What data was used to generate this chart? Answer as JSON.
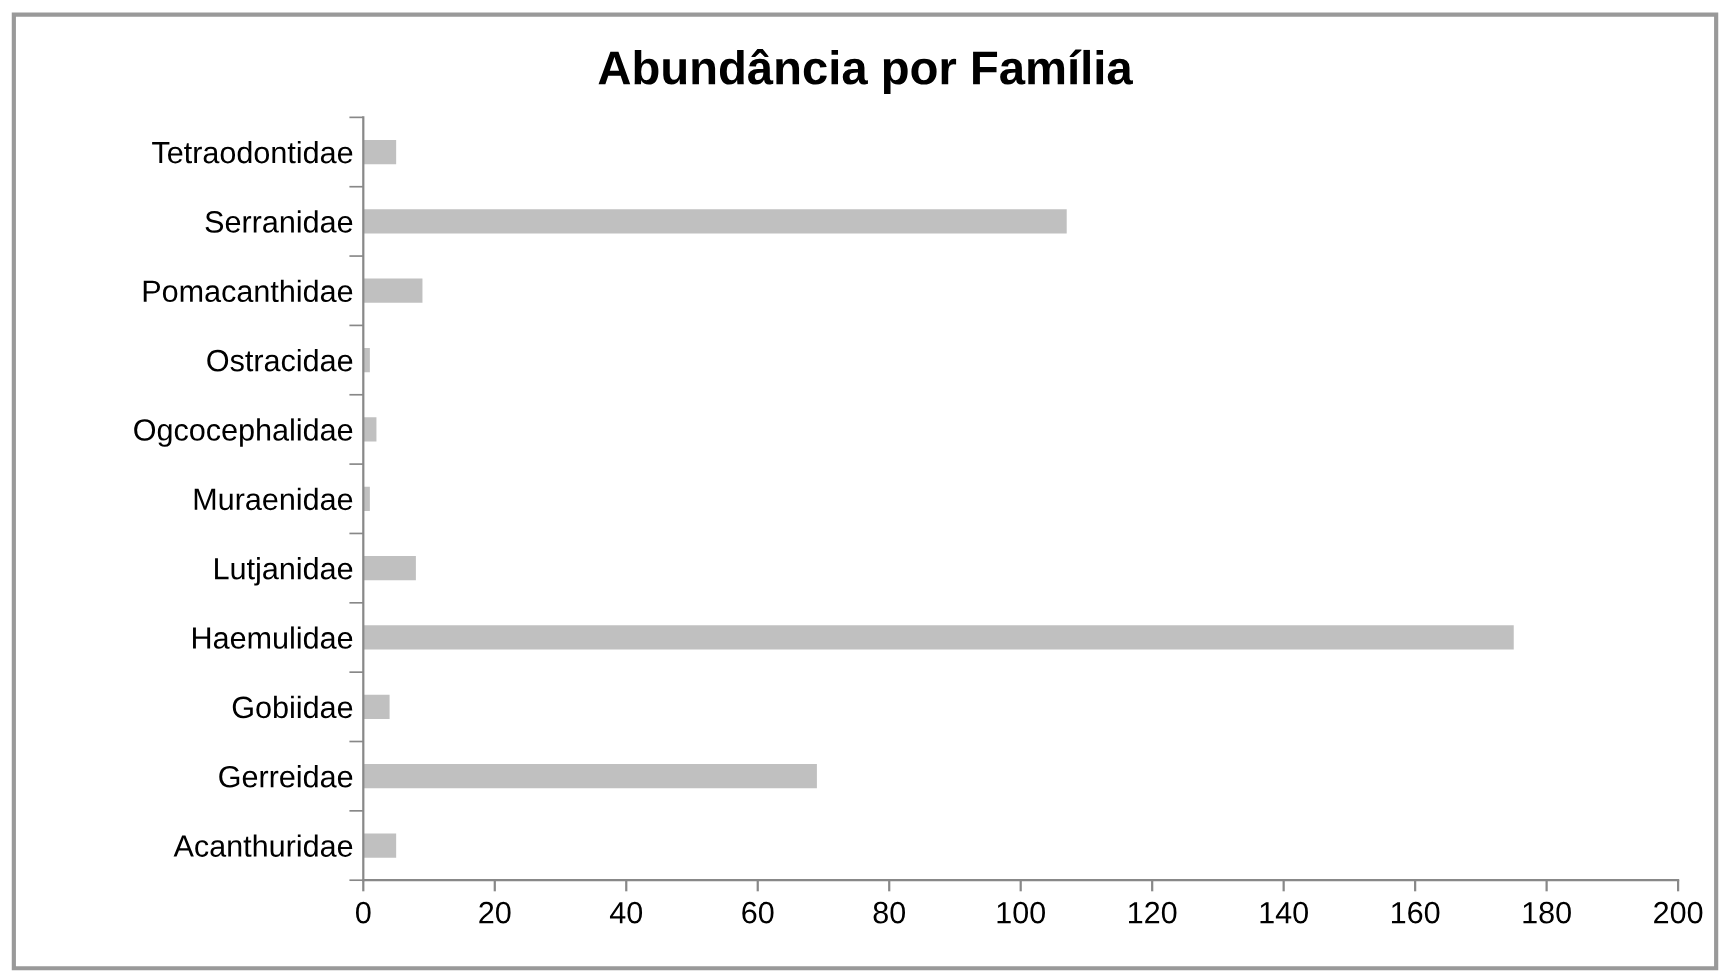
{
  "chart_data": {
    "type": "bar",
    "orientation": "horizontal",
    "title": "Abundância por Família",
    "categories": [
      "Tetraodontidae",
      "Serranidae",
      "Pomacanthidae",
      "Ostracidae",
      "Ogcocephalidae",
      "Muraenidae",
      "Lutjanidae",
      "Haemulidae",
      "Gobiidae",
      "Gerreidae",
      "Acanthuridae"
    ],
    "values": [
      5,
      107,
      9,
      1,
      2,
      1,
      8,
      175,
      4,
      69,
      5
    ],
    "color": "#c0c0c0",
    "xlim": [
      0,
      200
    ],
    "xticks": [
      0,
      20,
      40,
      60,
      80,
      100,
      120,
      140,
      160,
      180,
      200
    ],
    "grid": false,
    "legend": false
  }
}
